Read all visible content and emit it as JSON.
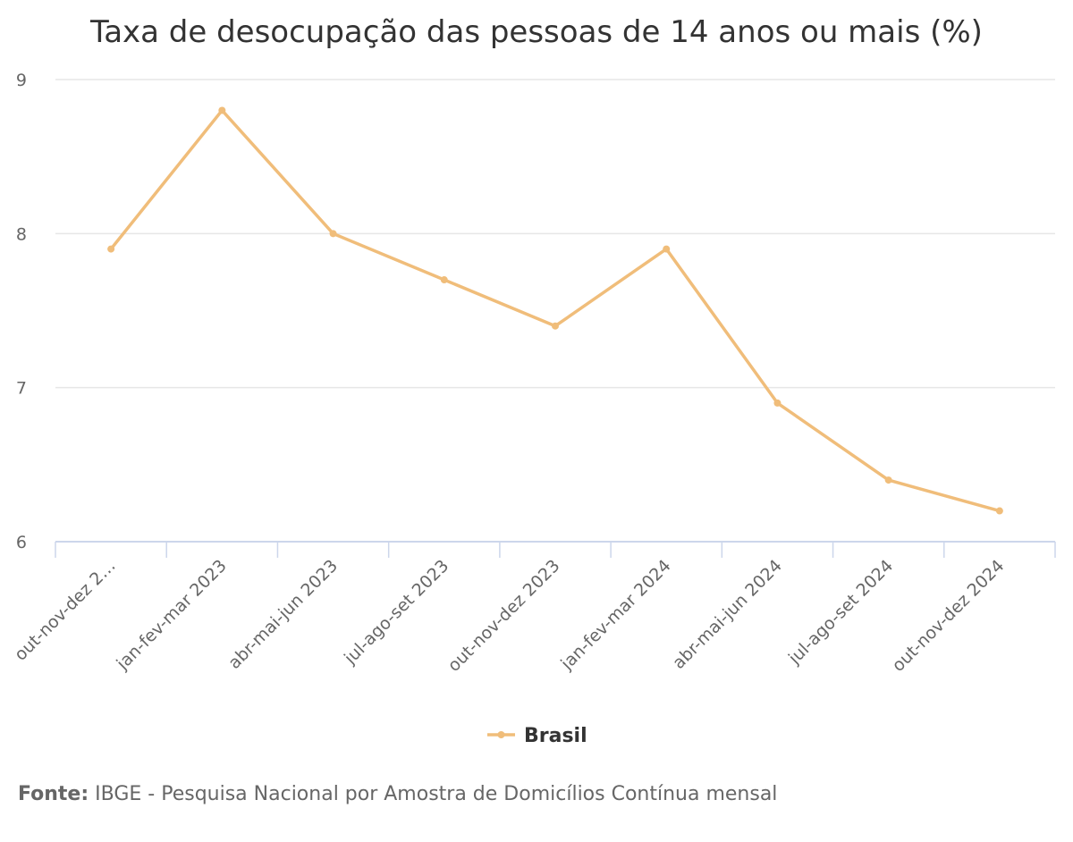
{
  "chart_data": {
    "type": "line",
    "title": "Taxa de desocupação das pessoas de 14 anos ou mais (%)",
    "categories": [
      "out-nov-dez 2…",
      "jan-fev-mar 2023",
      "abr-mai-jun 2023",
      "jul-ago-set 2023",
      "out-nov-dez 2023",
      "jan-fev-mar 2024",
      "abr-mai-jun 2024",
      "jul-ago-set 2024",
      "out-nov-dez 2024"
    ],
    "series": [
      {
        "name": "Brasil",
        "color": "#f0bd7a",
        "values": [
          7.9,
          8.8,
          8.0,
          7.7,
          7.4,
          7.9,
          6.9,
          6.4,
          6.2
        ]
      }
    ],
    "ylim": [
      6,
      9
    ],
    "yticks": [
      "6",
      "7",
      "8",
      "9"
    ],
    "grid": true,
    "legend": "bottom-center"
  },
  "source": {
    "label": "Fonte:",
    "text": "IBGE - Pesquisa Nacional por Amostra de Domicílios Contínua mensal"
  }
}
